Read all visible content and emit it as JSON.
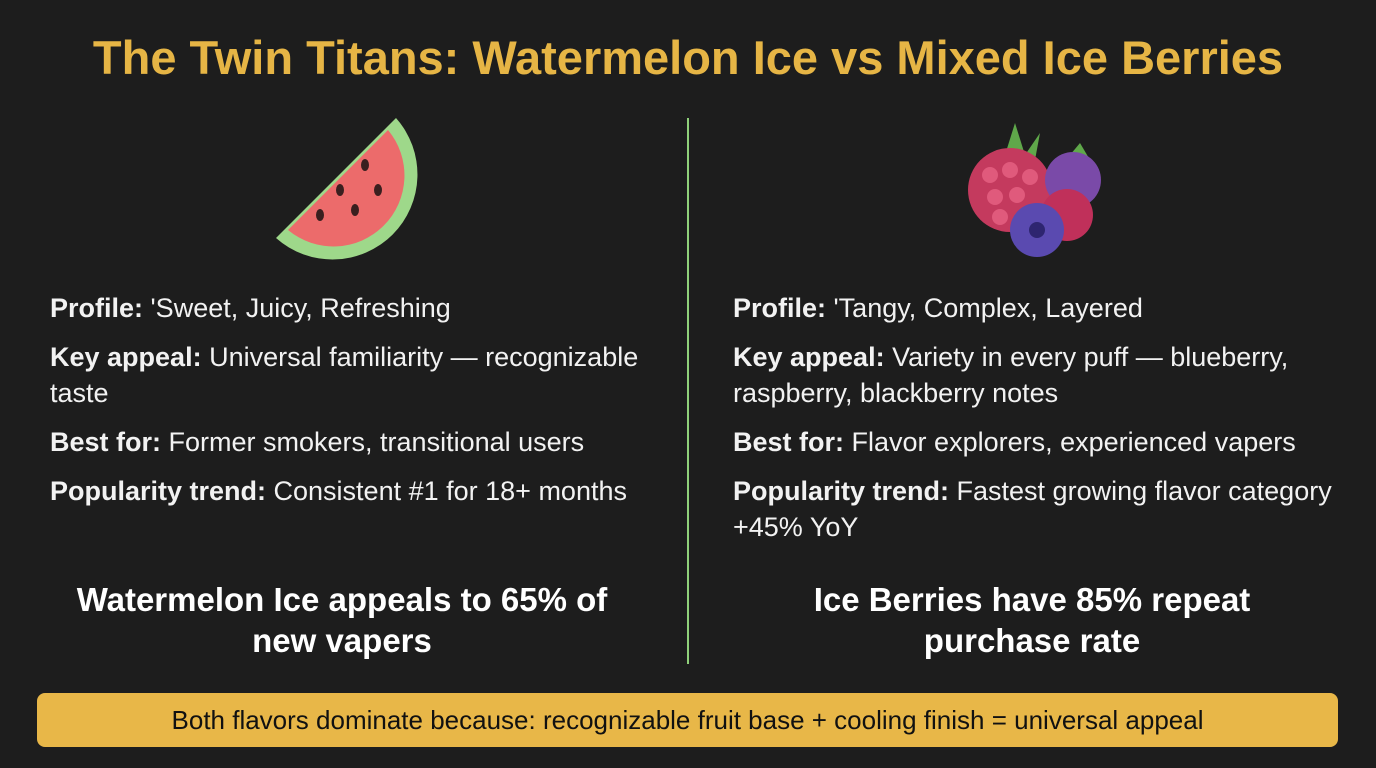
{
  "header": {
    "title": "The Twin Titans: Watermelon Ice vs Mixed Ice Berries"
  },
  "columns": [
    {
      "items": [
        {
          "label": "Profile:",
          "text": "'Sweet, Juicy, Refreshing"
        },
        {
          "label": "Key appeal:",
          "text": "Universal familiarity — recognizable taste"
        },
        {
          "label": "Best for:",
          "text": "Former smokers, transitional users"
        },
        {
          "label": "Popularity trend:",
          "text": "Consistent #1 for 18+ months"
        }
      ],
      "highlight": "Watermelon Ice appeals to 65% of new vapers"
    },
    {
      "items": [
        {
          "label": "Profile:",
          "text": "'Tangy, Complex, Layered"
        },
        {
          "label": "Key appeal:",
          "text": "Variety in every puff — blueberry, raspberry, blackberry notes"
        },
        {
          "label": "Best for:",
          "text": "Flavor explorers, experienced vapers"
        },
        {
          "label": "Popularity trend:",
          "text": "Fastest growing flavor category +45% YoY"
        }
      ],
      "highlight": "Ice Berries have 85% repeat purchase rate"
    }
  ],
  "footer": {
    "text": "Both flavors dominate because: recognizable fruit base + cooling finish = universal appeal"
  }
}
